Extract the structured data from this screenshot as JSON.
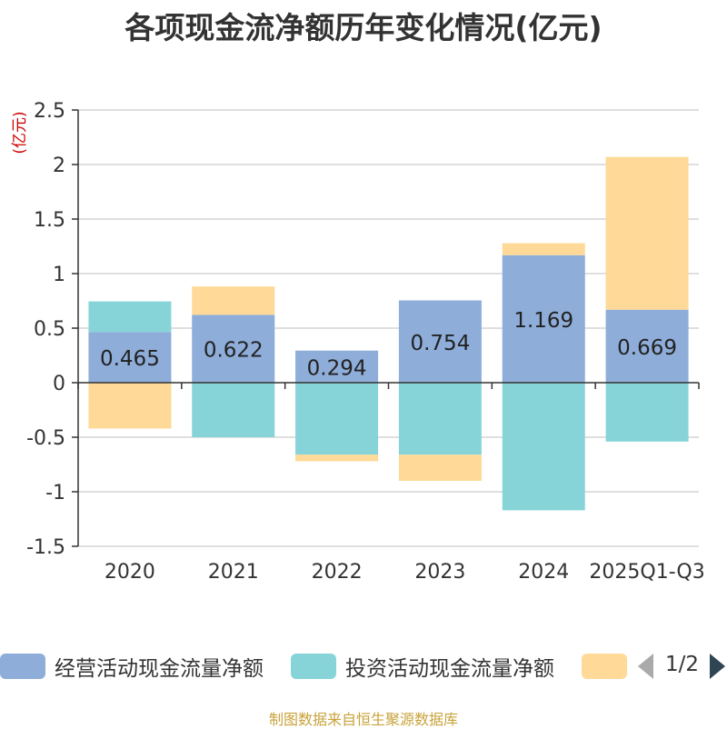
{
  "title": "各项现金流净额历年变化情况(亿元)",
  "source": "制图数据来自恒生聚源数据库",
  "legend": {
    "items": [
      {
        "label": "经营活动现金流量净额",
        "color": "#8eadd9"
      },
      {
        "label": "投资活动现金流量净额",
        "color": "#87d4d8"
      },
      {
        "label": "",
        "color": "#fed997"
      }
    ],
    "page": "1/2"
  },
  "chart_data": {
    "type": "bar",
    "stacked": true,
    "title": "各项现金流净额历年变化情况(亿元)",
    "ylabel": "(亿元)",
    "xlabel": "",
    "ylim": [
      -1.5,
      2.5
    ],
    "yticks": [
      -1.5,
      -1,
      -0.5,
      0,
      0.5,
      1,
      1.5,
      2,
      2.5
    ],
    "ytick_labels": [
      "-1.5",
      "-1",
      "-0.5",
      "0",
      "0.5",
      "1",
      "1.5",
      "2",
      "2.5"
    ],
    "categories": [
      "2020",
      "2021",
      "2022",
      "2023",
      "2024",
      "2025Q1-Q3"
    ],
    "series": [
      {
        "name": "经营活动现金流量净额",
        "color": "#8eadd9",
        "values": [
          0.465,
          0.622,
          0.294,
          0.754,
          1.169,
          0.669
        ],
        "labels": [
          "0.465",
          "0.622",
          "0.294",
          "0.754",
          "1.169",
          "0.669"
        ]
      },
      {
        "name": "投资活动现金流量净额",
        "color": "#87d4d8",
        "values": [
          0.28,
          -0.5,
          -0.66,
          -0.66,
          -1.17,
          -0.54
        ]
      },
      {
        "name": "",
        "color": "#fed997",
        "values": [
          -0.42,
          0.26,
          -0.06,
          -0.24,
          0.11,
          1.4
        ]
      }
    ]
  }
}
